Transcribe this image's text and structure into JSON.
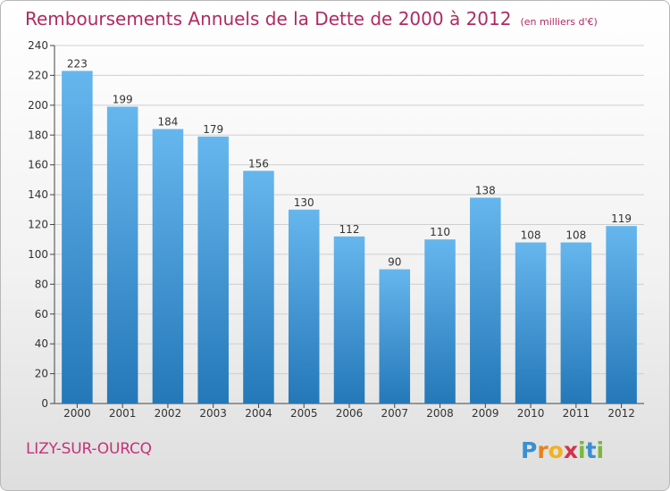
{
  "chart_data": {
    "type": "bar",
    "title": "Remboursements Annuels de la Dette de 2000 à 2012",
    "subtitle": "(en milliers d'€)",
    "categories": [
      "2000",
      "2001",
      "2002",
      "2003",
      "2004",
      "2005",
      "2006",
      "2007",
      "2008",
      "2009",
      "2010",
      "2011",
      "2012"
    ],
    "values": [
      223,
      199,
      184,
      179,
      156,
      130,
      112,
      90,
      110,
      138,
      108,
      108,
      119
    ],
    "ylim": [
      0,
      240
    ],
    "yticks": [
      0,
      20,
      40,
      60,
      80,
      100,
      120,
      140,
      160,
      180,
      200,
      220,
      240
    ],
    "grid": true,
    "colors": {
      "bar_light": "#66b6ee",
      "bar_dark": "#2478b8",
      "title": "#b02a62"
    }
  },
  "commune": "LIZY-SUR-OURCQ",
  "logo": {
    "letters": [
      "P",
      "r",
      "o",
      "x",
      "i",
      "t",
      "i"
    ],
    "colors": [
      "#3a8fd0",
      "#e6821e",
      "#f2b21d",
      "#d6314a",
      "#7ab83a",
      "#3a8fd0",
      "#7ab83a"
    ]
  }
}
